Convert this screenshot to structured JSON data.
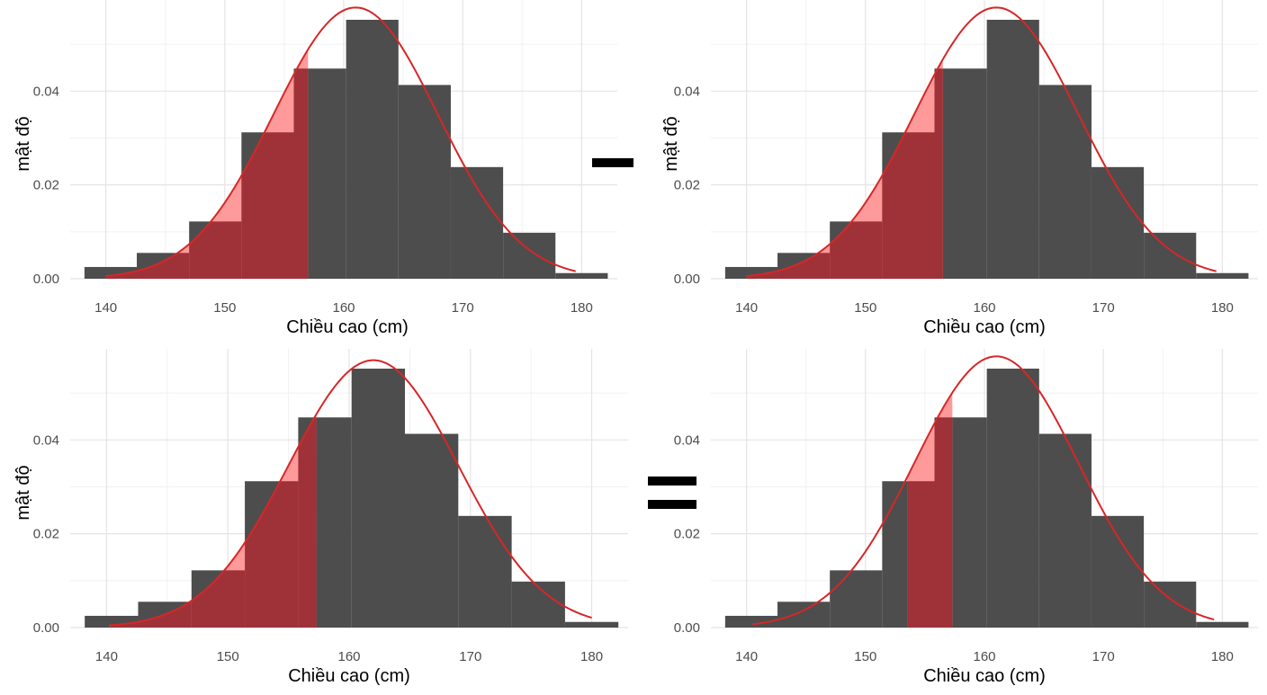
{
  "colors": {
    "bar": "#4d4d4d",
    "curve": "#d62728",
    "shade_over_bar": "#9e3238",
    "shade_light": "#ff9a9a",
    "grid_major": "#e4e4e4",
    "grid_minor": "#f1f1f1",
    "operator": "#000000"
  },
  "operators": {
    "minus": "−",
    "equals": "="
  },
  "chart_data": [
    {
      "type": "bar",
      "position": "top-left",
      "xlabel": "Chiều cao (cm)",
      "ylabel": "mật độ",
      "xlim": [
        137,
        183
      ],
      "ylim": [
        0,
        0.0575
      ],
      "x_ticks": [
        140,
        150,
        160,
        170,
        180
      ],
      "y_ticks": [
        0.0,
        0.02,
        0.04
      ],
      "y_tick_labels": [
        "0.00",
        "0.02",
        "0.04"
      ],
      "grid": true,
      "bins": [
        {
          "x0": 138.2,
          "x1": 142.6,
          "density": 0.0025
        },
        {
          "x0": 142.6,
          "x1": 147.0,
          "density": 0.0055
        },
        {
          "x0": 147.0,
          "x1": 151.4,
          "density": 0.0122
        },
        {
          "x0": 151.4,
          "x1": 155.8,
          "density": 0.0312
        },
        {
          "x0": 155.8,
          "x1": 160.2,
          "density": 0.0448
        },
        {
          "x0": 160.2,
          "x1": 164.6,
          "density": 0.0552
        },
        {
          "x0": 164.6,
          "x1": 169.0,
          "density": 0.0413
        },
        {
          "x0": 169.0,
          "x1": 173.4,
          "density": 0.0238
        },
        {
          "x0": 173.4,
          "x1": 177.8,
          "density": 0.0098
        },
        {
          "x0": 177.8,
          "x1": 182.2,
          "density": 0.0012
        }
      ],
      "curve": {
        "mean": 161.0,
        "sd": 6.9,
        "x_from": 140.0,
        "x_to": 179.5
      },
      "shade": {
        "from": 138.2,
        "to": 157.0
      }
    },
    {
      "type": "bar",
      "position": "top-right",
      "xlabel": "Chiều cao (cm)",
      "ylabel": "mật độ",
      "xlim": [
        137,
        183
      ],
      "ylim": [
        0,
        0.0575
      ],
      "x_ticks": [
        140,
        150,
        160,
        170,
        180
      ],
      "y_ticks": [
        0.0,
        0.02,
        0.04
      ],
      "y_tick_labels": [
        "0.00",
        "0.02",
        "0.04"
      ],
      "grid": true,
      "bins": [
        {
          "x0": 138.2,
          "x1": 142.6,
          "density": 0.0025
        },
        {
          "x0": 142.6,
          "x1": 147.0,
          "density": 0.0055
        },
        {
          "x0": 147.0,
          "x1": 151.4,
          "density": 0.0122
        },
        {
          "x0": 151.4,
          "x1": 155.8,
          "density": 0.0312
        },
        {
          "x0": 155.8,
          "x1": 160.2,
          "density": 0.0448
        },
        {
          "x0": 160.2,
          "x1": 164.6,
          "density": 0.0552
        },
        {
          "x0": 164.6,
          "x1": 169.0,
          "density": 0.0413
        },
        {
          "x0": 169.0,
          "x1": 173.4,
          "density": 0.0238
        },
        {
          "x0": 173.4,
          "x1": 177.8,
          "density": 0.0098
        },
        {
          "x0": 177.8,
          "x1": 182.2,
          "density": 0.0012
        }
      ],
      "curve": {
        "mean": 161.0,
        "sd": 6.9,
        "x_from": 140.0,
        "x_to": 179.5
      },
      "shade": {
        "from": 138.2,
        "to": 156.5
      }
    },
    {
      "type": "bar",
      "position": "bottom-left",
      "xlabel": "Chiều cao (cm)",
      "ylabel": "mật độ",
      "xlim": [
        137,
        183
      ],
      "ylim": [
        0,
        0.0575
      ],
      "x_ticks": [
        140,
        150,
        160,
        170,
        180
      ],
      "y_ticks": [
        0.0,
        0.02,
        0.04
      ],
      "y_tick_labels": [
        "0.00",
        "0.02",
        "0.04"
      ],
      "grid": true,
      "bins": [
        {
          "x0": 138.2,
          "x1": 142.6,
          "density": 0.0025
        },
        {
          "x0": 142.6,
          "x1": 147.0,
          "density": 0.0055
        },
        {
          "x0": 147.0,
          "x1": 151.4,
          "density": 0.0122
        },
        {
          "x0": 151.4,
          "x1": 155.8,
          "density": 0.0312
        },
        {
          "x0": 155.8,
          "x1": 160.2,
          "density": 0.0448
        },
        {
          "x0": 160.2,
          "x1": 164.6,
          "density": 0.0552
        },
        {
          "x0": 164.6,
          "x1": 169.0,
          "density": 0.0413
        },
        {
          "x0": 169.0,
          "x1": 173.4,
          "density": 0.0238
        },
        {
          "x0": 173.4,
          "x1": 177.8,
          "density": 0.0098
        },
        {
          "x0": 177.8,
          "x1": 182.2,
          "density": 0.0012
        }
      ],
      "curve": {
        "mean": 162.0,
        "sd": 7.0,
        "x_from": 140.2,
        "x_to": 180.0
      },
      "shade": {
        "from": 138.2,
        "to": 157.3
      }
    },
    {
      "type": "bar",
      "position": "bottom-right",
      "xlabel": "Chiều cao (cm)",
      "ylabel": "",
      "xlim": [
        137,
        183
      ],
      "ylim": [
        0,
        0.0575
      ],
      "x_ticks": [
        140,
        150,
        160,
        170,
        180
      ],
      "y_ticks": [
        0.0,
        0.02,
        0.04
      ],
      "y_tick_labels": [
        "0.00",
        "0.02",
        "0.04"
      ],
      "grid": true,
      "bins": [
        {
          "x0": 138.2,
          "x1": 142.6,
          "density": 0.0025
        },
        {
          "x0": 142.6,
          "x1": 147.0,
          "density": 0.0055
        },
        {
          "x0": 147.0,
          "x1": 151.4,
          "density": 0.0122
        },
        {
          "x0": 151.4,
          "x1": 155.8,
          "density": 0.0312
        },
        {
          "x0": 155.8,
          "x1": 160.2,
          "density": 0.0448
        },
        {
          "x0": 160.2,
          "x1": 164.6,
          "density": 0.0552
        },
        {
          "x0": 164.6,
          "x1": 169.0,
          "density": 0.0413
        },
        {
          "x0": 169.0,
          "x1": 173.4,
          "density": 0.0238
        },
        {
          "x0": 173.4,
          "x1": 177.8,
          "density": 0.0098
        },
        {
          "x0": 177.8,
          "x1": 182.2,
          "density": 0.0012
        }
      ],
      "curve": {
        "mean": 161.0,
        "sd": 6.9,
        "x_from": 140.5,
        "x_to": 179.3
      },
      "shade": {
        "from": 153.5,
        "to": 157.3
      }
    }
  ]
}
